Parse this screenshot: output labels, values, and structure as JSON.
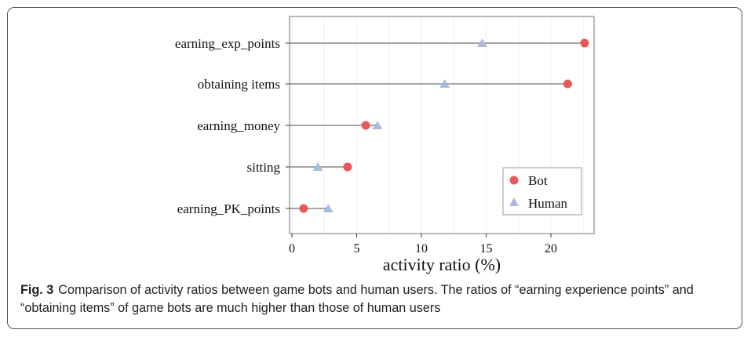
{
  "colors": {
    "bot": "#e8585a",
    "human": "#a9bcdd",
    "segment": "#6f6f6f",
    "grid": "#ececec"
  },
  "chart_data": {
    "type": "dot-dumbbell",
    "categories": [
      "earning_exp_points",
      "obtaining items",
      "earning_money",
      "sitting",
      "earning_PK_points"
    ],
    "series": [
      {
        "name": "Bot",
        "marker": "circle",
        "values": [
          22.6,
          21.3,
          5.7,
          4.3,
          0.9
        ]
      },
      {
        "name": "Human",
        "marker": "triangle",
        "values": [
          14.7,
          11.8,
          6.6,
          2.0,
          2.8
        ]
      }
    ],
    "xlabel": "activity ratio (%)",
    "xlim": [
      -0.3,
      23.5
    ],
    "xticks": [
      "0",
      "5",
      "10",
      "15",
      "20"
    ],
    "grid": true,
    "legend_position": "bottom-right"
  },
  "caption": {
    "label": "Fig. 3",
    "text": "Comparison of activity ratios between game bots and human users. The ratios of “earning experience points” and “obtaining items” of game bots are much higher than those of human users"
  }
}
